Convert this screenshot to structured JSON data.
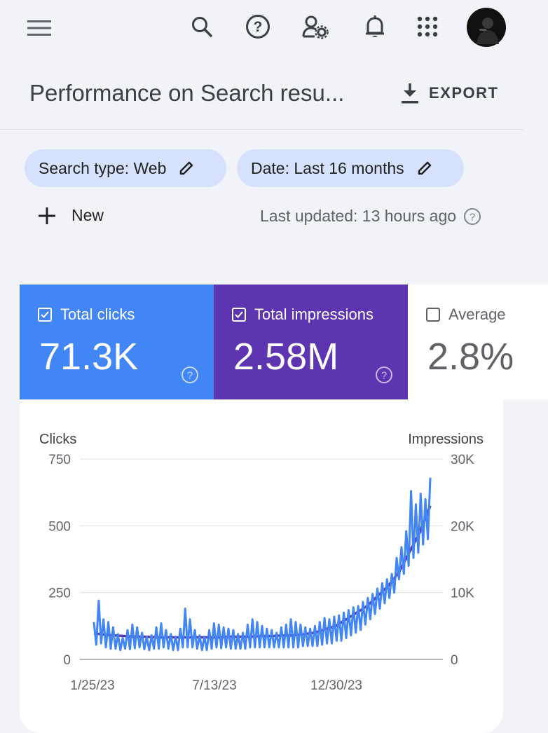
{
  "header": {
    "title": "Performance on Search resu...",
    "export_label": "EXPORT",
    "icons": [
      "menu-icon",
      "search-icon",
      "help-icon",
      "user-settings-icon",
      "bell-icon",
      "apps-grid-icon",
      "avatar"
    ]
  },
  "filters": {
    "search_type": "Search type: Web",
    "date": "Date: Last 16 months",
    "new_label": "New",
    "last_updated": "Last updated: 13 hours ago"
  },
  "metrics": [
    {
      "label": "Total clicks",
      "value": "71.3K",
      "checked": true,
      "color": "#4285f4"
    },
    {
      "label": "Total impressions",
      "value": "2.58M",
      "checked": true,
      "color": "#5e35b1"
    },
    {
      "label": "Average",
      "value": "2.8%",
      "checked": false,
      "color": "#ffffff"
    }
  ],
  "colors": {
    "clicks": "#4285f4",
    "impressions": "#5e35b1"
  },
  "chart_data": {
    "type": "line",
    "left_axis_title": "Clicks",
    "right_axis_title": "Impressions",
    "left_ticks": [
      "750",
      "500",
      "250",
      "0"
    ],
    "right_ticks": [
      "30K",
      "20K",
      "10K",
      "0"
    ],
    "x_ticks": [
      "1/25/23",
      "7/13/23",
      "12/30/23"
    ],
    "ylim_left": [
      0,
      750
    ],
    "ylim_right": [
      0,
      30000
    ],
    "grid": true,
    "series": [
      {
        "name": "Total clicks",
        "axis": "left",
        "color": "#4285f4",
        "values": [
          140,
          55,
          220,
          60,
          150,
          45,
          140,
          40,
          120,
          40,
          95,
          35,
          80,
          40,
          110,
          38,
          130,
          42,
          120,
          45,
          100,
          38,
          85,
          35,
          90,
          40,
          120,
          40,
          135,
          45,
          110,
          40,
          95,
          35,
          85,
          35,
          115,
          45,
          190,
          45,
          150,
          45,
          110,
          40,
          90,
          35,
          85,
          35,
          110,
          40,
          135,
          45,
          130,
          42,
          120,
          45,
          115,
          40,
          110,
          40,
          95,
          40,
          100,
          40,
          130,
          45,
          150,
          45,
          140,
          45,
          125,
          45,
          115,
          45,
          110,
          45,
          100,
          45,
          120,
          45,
          130,
          45,
          150,
          45,
          140,
          45,
          130,
          50,
          120,
          50,
          115,
          50,
          125,
          50,
          140,
          55,
          155,
          60,
          150,
          60,
          160,
          70,
          165,
          70,
          175,
          80,
          185,
          90,
          195,
          100,
          200,
          110,
          215,
          130,
          230,
          150,
          245,
          170,
          265,
          190,
          285,
          210,
          300,
          230,
          320,
          250,
          380,
          300,
          420,
          320,
          480,
          350,
          630,
          380,
          580,
          400,
          620,
          430,
          600,
          450,
          680
        ]
      },
      {
        "name": "Total impressions",
        "axis": "right",
        "color": "#5e35b1",
        "values": [
          3900,
          3700,
          3600,
          3500,
          3400,
          3400,
          3300,
          3300,
          3300,
          3300,
          3300,
          3300,
          3300,
          3400,
          3400,
          3400,
          3500,
          3500,
          3600,
          3600,
          3800,
          4000,
          4500,
          5000,
          6000,
          7000,
          8000,
          9500,
          11000,
          13000,
          16000,
          19000,
          23000
        ]
      }
    ]
  }
}
